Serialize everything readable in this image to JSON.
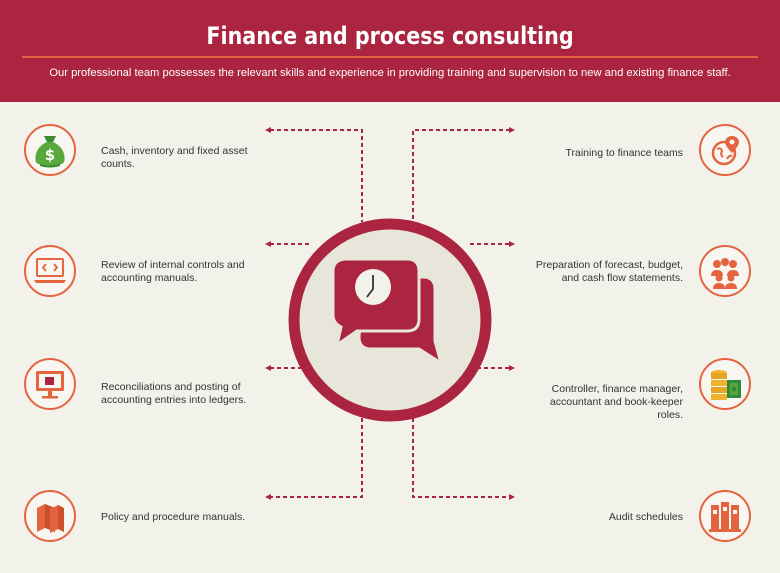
{
  "header": {
    "title": "Finance and process consulting",
    "subtitle": "Our professional team possesses the relevant skills and experience in providing training and supervision to new and existing finance staff."
  },
  "colors": {
    "brand": "#ab2540",
    "accent": "#e4643f",
    "background": "#f2f1ea",
    "center_fill": "#e8e5da"
  },
  "left_items": [
    {
      "text": "Cash, inventory and fixed asset counts.",
      "icon": "money-bag-icon"
    },
    {
      "text": "Review of internal controls and accounting manuals.",
      "icon": "computer-code-icon"
    },
    {
      "text": "Reconciliations and posting of accounting entries into ledgers.",
      "icon": "monitor-icon"
    },
    {
      "text": "Policy and procedure manuals.",
      "icon": "books-icon"
    }
  ],
  "right_items": [
    {
      "text": "Training to finance teams",
      "icon": "globe-location-icon"
    },
    {
      "text": "Preparation of forecast, budget, and cash flow statements.",
      "icon": "team-icon"
    },
    {
      "text": "Controller, finance manager, accountant and book-keeper roles.",
      "icon": "coins-cash-icon"
    },
    {
      "text": "Audit schedules",
      "icon": "binders-icon"
    }
  ],
  "center": {
    "icon": "chat-clock-icon"
  }
}
